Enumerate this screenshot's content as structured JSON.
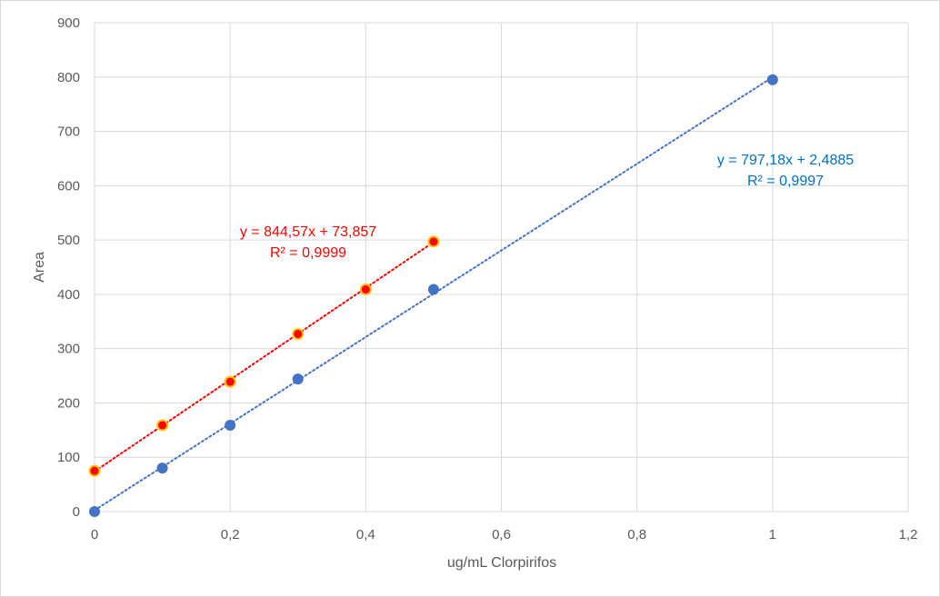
{
  "chart_data": {
    "type": "scatter",
    "title": "",
    "xlabel": "ug/mL Clorpirifos",
    "ylabel": "Area",
    "xlim": [
      0,
      1.2
    ],
    "ylim": [
      0,
      900
    ],
    "x_ticks": [
      "0",
      "0,2",
      "0,4",
      "0,6",
      "0,8",
      "1",
      "1,2"
    ],
    "y_ticks": [
      "0",
      "100",
      "200",
      "300",
      "400",
      "500",
      "600",
      "700",
      "800",
      "900"
    ],
    "grid": true,
    "legend": "none",
    "series": [
      {
        "color": "#4472c4",
        "marker_edge": "#4472c4",
        "x": [
          0,
          0.1,
          0.2,
          0.3,
          0.5,
          1.0
        ],
        "y": [
          0,
          80,
          159,
          244,
          409,
          795
        ],
        "trendline": {
          "slope": 797.18,
          "intercept": 2.4885,
          "x_range": [
            0,
            1.0
          ]
        },
        "equation": "y = 797,18x + 2,4885",
        "r2": "R² = 0,9997"
      },
      {
        "color": "#ff0000",
        "marker_edge": "#ffc000",
        "x": [
          0,
          0.1,
          0.2,
          0.3,
          0.4,
          0.5
        ],
        "y": [
          75,
          159,
          239,
          327,
          409,
          497
        ],
        "trendline": {
          "slope": 844.57,
          "intercept": 73.857,
          "x_range": [
            0,
            0.5
          ]
        },
        "equation": "y = 844,57x + 73,857",
        "r2": "R² = 0,9999"
      }
    ]
  }
}
